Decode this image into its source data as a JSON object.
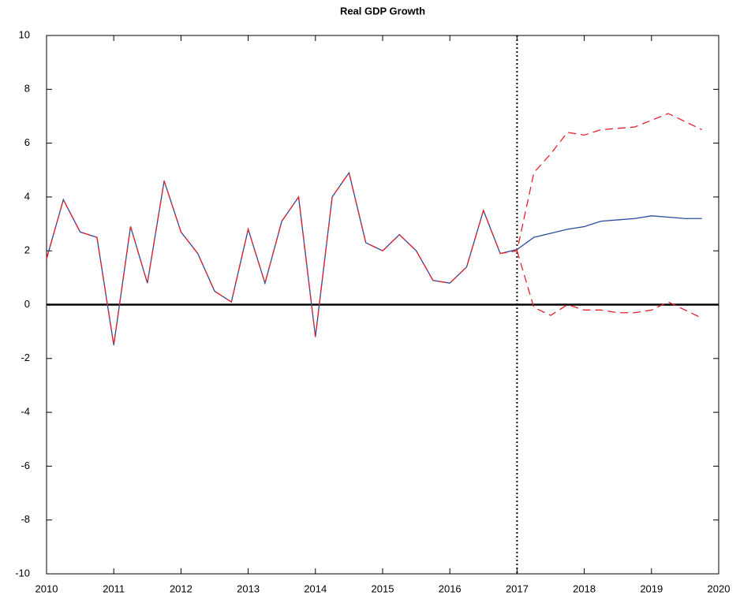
{
  "chart_data": {
    "type": "line",
    "title": "Real GDP Growth",
    "x": [
      2010,
      2010.25,
      2010.5,
      2010.75,
      2011,
      2011.25,
      2011.5,
      2011.75,
      2012,
      2012.25,
      2012.5,
      2012.75,
      2013,
      2013.25,
      2013.5,
      2013.75,
      2014,
      2014.25,
      2014.5,
      2014.75,
      2015,
      2015.25,
      2015.5,
      2015.75,
      2016,
      2016.25,
      2016.5,
      2016.75,
      2017,
      2017.25,
      2017.5,
      2017.75,
      2018,
      2018.25,
      2018.5,
      2018.75,
      2019,
      2019.25,
      2019.5,
      2019.75
    ],
    "series": [
      {
        "color": "#2b4a9c",
        "dash": "solid",
        "values": [
          1.7,
          3.9,
          2.7,
          2.5,
          -1.5,
          2.9,
          0.8,
          4.6,
          2.7,
          1.9,
          0.5,
          0.1,
          2.8,
          0.8,
          3.1,
          4.0,
          -1.2,
          4.0,
          4.9,
          2.3,
          2.0,
          2.6,
          2.0,
          0.9,
          0.8,
          1.4,
          3.5,
          1.9,
          2.05,
          2.5,
          2.65,
          2.8,
          2.9,
          3.1,
          3.15,
          3.2,
          3.3,
          3.25,
          3.2,
          3.2
        ]
      },
      {
        "color": "#e8202a",
        "dash": "dashed",
        "values": [
          1.7,
          3.9,
          2.7,
          2.5,
          -1.5,
          2.9,
          0.8,
          4.6,
          2.7,
          1.9,
          0.5,
          0.1,
          2.8,
          0.8,
          3.1,
          4.0,
          -1.2,
          4.0,
          4.9,
          2.3,
          2.0,
          2.6,
          2.0,
          0.9,
          0.8,
          1.4,
          3.5,
          1.9,
          2.0,
          4.9,
          5.6,
          6.4,
          6.3,
          6.5,
          6.55,
          6.6,
          6.85,
          7.1,
          6.8,
          6.5
        ]
      },
      {
        "color": "#e8202a",
        "dash": "dashed",
        "values": [
          null,
          null,
          null,
          null,
          null,
          null,
          null,
          null,
          null,
          null,
          null,
          null,
          null,
          null,
          null,
          null,
          null,
          null,
          null,
          null,
          null,
          null,
          null,
          null,
          null,
          null,
          null,
          null,
          2.0,
          -0.1,
          -0.4,
          0.0,
          -0.2,
          -0.2,
          -0.3,
          -0.3,
          -0.2,
          0.1,
          -0.2,
          -0.5
        ]
      }
    ],
    "xlim": [
      2010,
      2020
    ],
    "xticks": [
      2010,
      2011,
      2012,
      2013,
      2014,
      2015,
      2016,
      2017,
      2018,
      2019,
      2020
    ],
    "ylim": [
      -10,
      10
    ],
    "yticks": [
      -10,
      -8,
      -6,
      -4,
      -2,
      0,
      2,
      4,
      6,
      8,
      10
    ],
    "hline": 0,
    "vline": 2017,
    "grid": false
  }
}
